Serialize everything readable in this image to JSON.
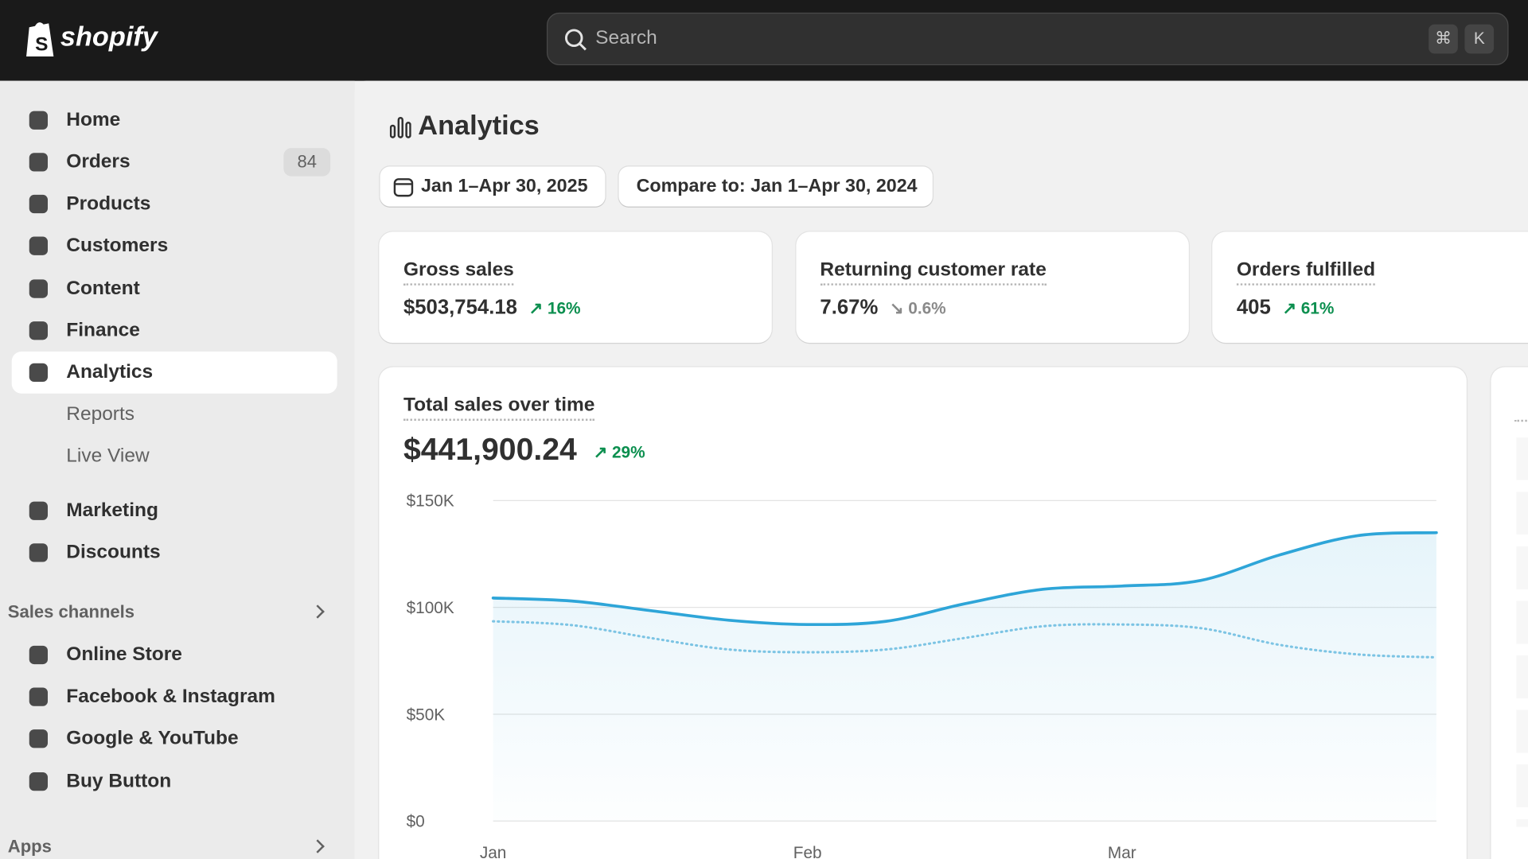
{
  "header": {
    "logo": "shopify",
    "search": "Search",
    "shortcut": [
      "⌘",
      "K"
    ]
  },
  "nav": {
    "main": [
      "Home",
      "Orders",
      "Products",
      "Customers",
      "Content",
      "Finance",
      "Analytics"
    ],
    "orders_badge": 84,
    "sub": [
      "Reports",
      "Live View"
    ],
    "more": [
      "Marketing",
      "Discounts"
    ],
    "sales_channels": {
      "title": "Sales channels",
      "items": [
        "Online Store",
        "Facebook & Instagram",
        "Google & YouTube",
        "Buy Button"
      ]
    },
    "apps": {
      "title": "Apps"
    }
  },
  "page": {
    "title": "Analytics",
    "date_range": "Jan 1–Apr 30, 2025",
    "compare": "Compare to: Jan 1–Apr 30, 2024"
  },
  "kpis": [
    {
      "title": "Gross sales",
      "value": "$503,754.18",
      "change": "16%",
      "direction": "up"
    },
    {
      "title": "Returning customer rate",
      "value": "7.67%",
      "change": "0.6%",
      "direction": "down"
    },
    {
      "title": "Orders fulfilled",
      "value": "405",
      "change": "61%",
      "direction": "up"
    }
  ],
  "chart_data": {
    "type": "line",
    "title": "Total sales over time",
    "total": "$441,900.24",
    "change": "29%",
    "categories": [
      "Jan",
      null,
      null,
      null,
      "Feb",
      null,
      null,
      null,
      "Mar",
      null,
      null,
      null,
      null
    ],
    "series": [
      {
        "color": "#2ea5d8",
        "style": "solid",
        "values": [
          104400,
          103000,
          98500,
          94000,
          92000,
          93500,
          101700,
          108500,
          110000,
          112600,
          124500,
          133600,
          135000
        ]
      },
      {
        "color": "#7cc4e4",
        "style": "dotted",
        "values": [
          93500,
          91700,
          85700,
          80300,
          79000,
          80300,
          85700,
          91200,
          92000,
          90300,
          82500,
          78000,
          76600
        ]
      }
    ],
    "ylim": [
      0,
      150000
    ],
    "yticks": [
      {
        "value": 0,
        "label": "$0"
      },
      {
        "value": 50000,
        "label": "$50K"
      },
      {
        "value": 100000,
        "label": "$100K"
      },
      {
        "value": 150000,
        "label": "$150K"
      }
    ],
    "grid": true
  }
}
